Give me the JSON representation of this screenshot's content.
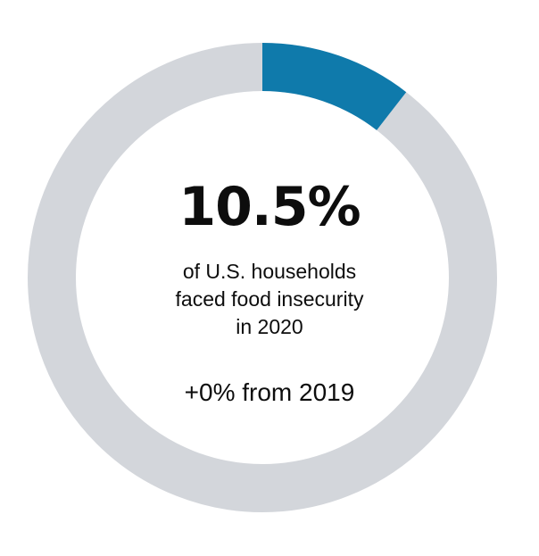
{
  "chart_data": {
    "type": "pie",
    "style": "donut",
    "value_percent": 10.5,
    "remainder_percent": 89.5,
    "value_label": "10.5%",
    "caption_lines": [
      "of U.S. households",
      "faced food insecurity",
      "in 2020"
    ],
    "change_label": "+0% from 2019",
    "colors": {
      "value": "#0f7aab",
      "remainder": "#d3d6db"
    }
  }
}
